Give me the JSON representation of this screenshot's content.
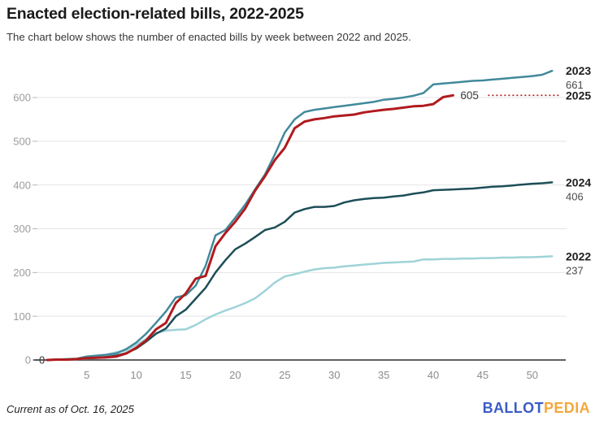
{
  "footer": {
    "note": "Current as of Oct. 16, 2025",
    "logo": {
      "part1": "BALLOT",
      "part2": "PEDIA",
      "color1": "#3b5cc6",
      "color2": "#f5a73b"
    }
  },
  "chart_data": {
    "type": "line",
    "title": "Enacted election-related bills, 2022-2025",
    "subtitle": "The chart below shows the number of enacted bills by week between 2022 and 2025.",
    "x_unit": "week",
    "x_ticks": [
      5,
      10,
      15,
      20,
      25,
      30,
      35,
      40,
      45,
      50
    ],
    "y_ticks": [
      0,
      100,
      200,
      300,
      400,
      500,
      600
    ],
    "xlim": [
      1,
      52
    ],
    "ylim": [
      0,
      680
    ],
    "grid": "horizontal",
    "legend_position": "right-end-labels",
    "start_label": "0",
    "axis_color": "#2b2b2b",
    "gridline_color": "#e4e4e4",
    "tick_label_color": "#9c9c9c",
    "series": [
      {
        "name": "2022",
        "color": "#9fd3d8",
        "final_value": 237,
        "values": [
          0,
          1,
          1,
          2,
          3,
          5,
          12,
          18,
          22,
          35,
          48,
          62,
          67,
          69,
          70,
          80,
          93,
          104,
          113,
          121,
          130,
          141,
          158,
          177,
          191,
          196,
          202,
          207,
          210,
          211,
          214,
          216,
          218,
          220,
          222,
          223,
          224,
          225,
          230,
          230,
          231,
          231,
          232,
          232,
          233,
          233,
          234,
          234,
          235,
          235,
          236,
          237
        ]
      },
      {
        "name": "2023",
        "color": "#41899b",
        "final_value": 661,
        "values": [
          0,
          1,
          2,
          3,
          8,
          10,
          12,
          15,
          25,
          40,
          60,
          85,
          111,
          143,
          148,
          170,
          215,
          285,
          297,
          325,
          355,
          390,
          424,
          470,
          520,
          550,
          567,
          572,
          575,
          578,
          581,
          584,
          587,
          590,
          595,
          597,
          600,
          604,
          610,
          630,
          632,
          634,
          636,
          638,
          639,
          641,
          643,
          645,
          647,
          649,
          652,
          661
        ]
      },
      {
        "name": "2024",
        "color": "#1d4e57",
        "final_value": 406,
        "values": [
          0,
          1,
          1,
          2,
          4,
          5,
          7,
          10,
          16,
          26,
          42,
          60,
          72,
          100,
          115,
          140,
          165,
          200,
          228,
          253,
          266,
          281,
          297,
          303,
          316,
          337,
          345,
          350,
          350,
          352,
          360,
          365,
          368,
          370,
          371,
          374,
          376,
          380,
          383,
          388,
          389,
          390,
          391,
          392,
          394,
          396,
          397,
          399,
          401,
          403,
          404,
          406
        ]
      },
      {
        "name": "2025",
        "color": "#b01b1e",
        "final_value": 605,
        "end_week": 42,
        "annotation": "605",
        "dotted_to_label": true,
        "values": [
          0,
          1,
          1,
          2,
          4,
          5,
          6,
          8,
          15,
          28,
          45,
          70,
          85,
          130,
          152,
          186,
          192,
          260,
          290,
          316,
          346,
          387,
          420,
          457,
          485,
          530,
          545,
          550,
          553,
          557,
          559,
          561,
          566,
          569,
          572,
          574,
          577,
          580,
          581,
          585,
          601,
          605
        ]
      }
    ]
  }
}
